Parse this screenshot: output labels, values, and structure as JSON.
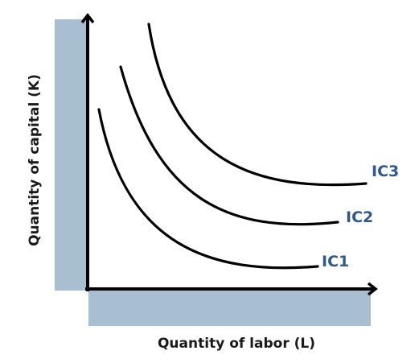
{
  "colors": {
    "band": "#a7bfd1",
    "axis": "#000000",
    "curve": "#000000",
    "curve_label": "#2f5a8a"
  },
  "diagram": {
    "y_axis_label": "Quantity of capital (K)",
    "x_axis_label": "Quantity of labor (L)",
    "curves": [
      {
        "label": "IC1"
      },
      {
        "label": "IC2"
      },
      {
        "label": "IC3"
      }
    ]
  }
}
